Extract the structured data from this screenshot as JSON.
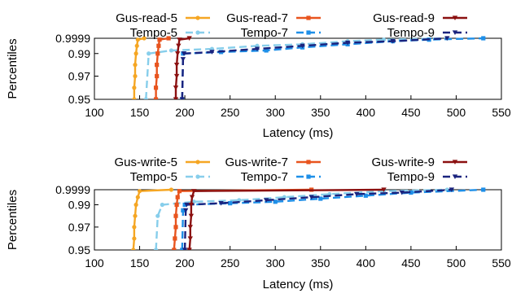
{
  "chart_data": [
    {
      "type": "line",
      "xlabel": "Latency (ms)",
      "ylabel": "Percentiles",
      "xlim": [
        100,
        550
      ],
      "x_ticks": [
        "100",
        "150",
        "200",
        "250",
        "300",
        "350",
        "400",
        "450",
        "500",
        "550"
      ],
      "y_ticks": [
        "0.9999",
        "0.99",
        "0.97",
        "0.95"
      ],
      "y_scale": "percentile (nonlinear)",
      "legend": "top, 3 columns",
      "series": [
        {
          "name": "Gus-read-5",
          "color": "#f5a623",
          "style": "solid",
          "marker": "circle",
          "points": [
            [
              144,
              0.95
            ],
            [
              144,
              0.96
            ],
            [
              145,
              0.97
            ],
            [
              145,
              0.98
            ],
            [
              146,
              0.99
            ],
            [
              147,
              0.995
            ],
            [
              148,
              0.999
            ],
            [
              155,
              0.9999
            ]
          ]
        },
        {
          "name": "Gus-read-7",
          "color": "#e8541e",
          "style": "solid",
          "marker": "square",
          "points": [
            [
              168,
              0.95
            ],
            [
              168,
              0.96
            ],
            [
              169,
              0.97
            ],
            [
              169,
              0.98
            ],
            [
              170,
              0.99
            ],
            [
              171,
              0.995
            ],
            [
              172,
              0.999
            ],
            [
              182,
              0.9999
            ]
          ]
        },
        {
          "name": "Gus-read-9",
          "color": "#8b1010",
          "style": "solid",
          "marker": "triangle",
          "points": [
            [
              190,
              0.95
            ],
            [
              190,
              0.96
            ],
            [
              191,
              0.97
            ],
            [
              191,
              0.98
            ],
            [
              192,
              0.99
            ],
            [
              193,
              0.995
            ],
            [
              194,
              0.999
            ],
            [
              205,
              0.9999
            ]
          ]
        },
        {
          "name": "Tempo-5",
          "color": "#87ceeb",
          "style": "dashed",
          "marker": "circle",
          "points": [
            [
              157,
              0.95
            ],
            [
              160,
              0.99
            ],
            [
              185,
              0.992
            ],
            [
              230,
              0.993
            ],
            [
              280,
              0.995
            ],
            [
              330,
              0.996
            ],
            [
              380,
              0.998
            ],
            [
              420,
              0.999
            ],
            [
              490,
              0.9999
            ]
          ]
        },
        {
          "name": "Tempo-7",
          "color": "#1e8fe8",
          "style": "dashed",
          "marker": "square",
          "points": [
            [
              197,
              0.95
            ],
            [
              198,
              0.99
            ],
            [
              240,
              0.991
            ],
            [
              290,
              0.992
            ],
            [
              330,
              0.994
            ],
            [
              380,
              0.996
            ],
            [
              430,
              0.998
            ],
            [
              470,
              0.999
            ],
            [
              530,
              0.9999
            ]
          ]
        },
        {
          "name": "Tempo-9",
          "color": "#1a237e",
          "style": "dashed",
          "marker": "triangle",
          "points": [
            [
              197,
              0.95
            ],
            [
              198,
              0.985
            ],
            [
              199,
              0.99
            ],
            [
              230,
              0.991
            ],
            [
              280,
              0.993
            ],
            [
              330,
              0.995
            ],
            [
              380,
              0.997
            ],
            [
              430,
              0.998
            ],
            [
              490,
              0.9999
            ]
          ]
        }
      ]
    },
    {
      "type": "line",
      "xlabel": "Latency (ms)",
      "ylabel": "Percentiles",
      "xlim": [
        100,
        550
      ],
      "x_ticks": [
        "100",
        "150",
        "200",
        "250",
        "300",
        "350",
        "400",
        "450",
        "500",
        "550"
      ],
      "y_ticks": [
        "0.9999",
        "0.99",
        "0.97",
        "0.95"
      ],
      "y_scale": "percentile (nonlinear)",
      "legend": "top, 3 columns",
      "series": [
        {
          "name": "Gus-write-5",
          "color": "#f5a623",
          "style": "solid",
          "marker": "circle",
          "points": [
            [
              143,
              0.95
            ],
            [
              144,
              0.96
            ],
            [
              144,
              0.97
            ],
            [
              145,
              0.98
            ],
            [
              146,
              0.99
            ],
            [
              148,
              0.995
            ],
            [
              150,
              0.999
            ],
            [
              185,
              0.9999
            ]
          ]
        },
        {
          "name": "Gus-write-7",
          "color": "#e8541e",
          "style": "solid",
          "marker": "square",
          "points": [
            [
              188,
              0.95
            ],
            [
              189,
              0.96
            ],
            [
              190,
              0.97
            ],
            [
              190,
              0.98
            ],
            [
              191,
              0.99
            ],
            [
              192,
              0.995
            ],
            [
              194,
              0.999
            ],
            [
              340,
              0.9999
            ]
          ]
        },
        {
          "name": "Gus-write-9",
          "color": "#8b1010",
          "style": "solid",
          "marker": "triangle",
          "points": [
            [
              205,
              0.95
            ],
            [
              206,
              0.96
            ],
            [
              206,
              0.97
            ],
            [
              207,
              0.98
            ],
            [
              207,
              0.99
            ],
            [
              208,
              0.995
            ],
            [
              210,
              0.999
            ],
            [
              420,
              0.9999
            ]
          ]
        },
        {
          "name": "Tempo-5",
          "color": "#87ceeb",
          "style": "dashed",
          "marker": "circle",
          "points": [
            [
              168,
              0.95
            ],
            [
              170,
              0.98
            ],
            [
              175,
              0.99
            ],
            [
              210,
              0.992
            ],
            [
              260,
              0.993
            ],
            [
              310,
              0.995
            ],
            [
              360,
              0.997
            ],
            [
              420,
              0.999
            ],
            [
              490,
              0.9999
            ]
          ]
        },
        {
          "name": "Tempo-7",
          "color": "#1e8fe8",
          "style": "dashed",
          "marker": "square",
          "points": [
            [
              197,
              0.95
            ],
            [
              198,
              0.985
            ],
            [
              200,
              0.99
            ],
            [
              250,
              0.991
            ],
            [
              300,
              0.992
            ],
            [
              350,
              0.994
            ],
            [
              400,
              0.996
            ],
            [
              450,
              0.998
            ],
            [
              530,
              0.9999
            ]
          ]
        },
        {
          "name": "Tempo-9",
          "color": "#1a237e",
          "style": "dashed",
          "marker": "triangle",
          "points": [
            [
              200,
              0.95
            ],
            [
              201,
              0.985
            ],
            [
              202,
              0.99
            ],
            [
              240,
              0.991
            ],
            [
              290,
              0.993
            ],
            [
              340,
              0.995
            ],
            [
              390,
              0.997
            ],
            [
              440,
              0.998
            ],
            [
              495,
              0.9999
            ]
          ]
        }
      ]
    }
  ]
}
